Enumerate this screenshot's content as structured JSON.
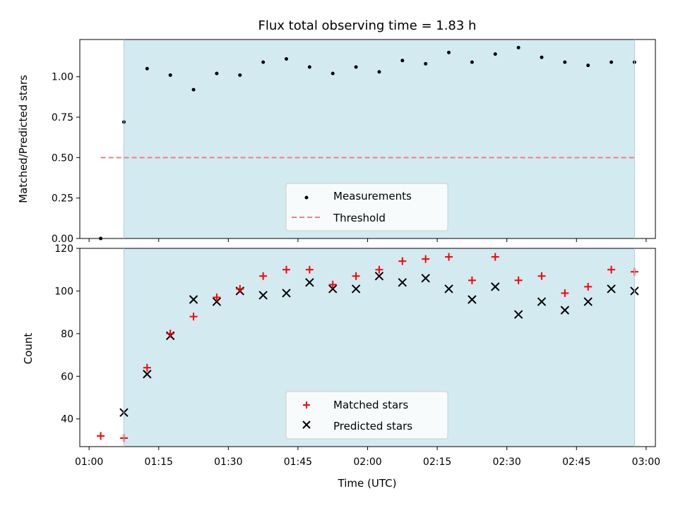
{
  "chart_data": [
    {
      "type": "scatter",
      "title": "Flux total observing time = 1.83 h",
      "xlabel": "",
      "ylabel": "Matched/Predicted stars",
      "ylim": [
        0,
        1.23
      ],
      "yticks": [
        "0.00",
        "0.25",
        "0.50",
        "0.75",
        "1.00"
      ],
      "shaded_interval": {
        "start": "01:07:30",
        "end": "02:57:30",
        "color": "#d4eaf1"
      },
      "series": [
        {
          "name": "Measurements",
          "marker": "dot",
          "color": "#000000",
          "points": [
            {
              "x": "01:02:30",
              "y": 0.0
            },
            {
              "x": "01:07:30",
              "y": 0.72
            },
            {
              "x": "01:12:30",
              "y": 1.05
            },
            {
              "x": "01:17:30",
              "y": 1.01
            },
            {
              "x": "01:22:30",
              "y": 0.92
            },
            {
              "x": "01:27:30",
              "y": 1.02
            },
            {
              "x": "01:32:30",
              "y": 1.01
            },
            {
              "x": "01:37:30",
              "y": 1.09
            },
            {
              "x": "01:42:30",
              "y": 1.11
            },
            {
              "x": "01:47:30",
              "y": 1.06
            },
            {
              "x": "01:52:30",
              "y": 1.02
            },
            {
              "x": "01:57:30",
              "y": 1.06
            },
            {
              "x": "02:02:30",
              "y": 1.03
            },
            {
              "x": "02:07:30",
              "y": 1.1
            },
            {
              "x": "02:12:30",
              "y": 1.08
            },
            {
              "x": "02:17:30",
              "y": 1.15
            },
            {
              "x": "02:22:30",
              "y": 1.09
            },
            {
              "x": "02:27:30",
              "y": 1.14
            },
            {
              "x": "02:32:30",
              "y": 1.18
            },
            {
              "x": "02:37:30",
              "y": 1.12
            },
            {
              "x": "02:42:30",
              "y": 1.09
            },
            {
              "x": "02:47:30",
              "y": 1.07
            },
            {
              "x": "02:52:30",
              "y": 1.09
            },
            {
              "x": "02:57:30",
              "y": 1.09
            }
          ]
        },
        {
          "name": "Threshold",
          "type": "line",
          "style": "dashed",
          "color": "#f08080",
          "points": [
            {
              "x": "01:02:30",
              "y": 0.5
            },
            {
              "x": "02:57:30",
              "y": 0.5
            }
          ]
        }
      ],
      "legend_position": "bottom-center",
      "grid": false
    },
    {
      "type": "scatter",
      "title": "",
      "xlabel": "Time (UTC)",
      "ylabel": "Count",
      "ylim": [
        27,
        120
      ],
      "yticks": [
        "40",
        "60",
        "80",
        "100",
        "120"
      ],
      "xticks": [
        "01:00",
        "01:15",
        "01:30",
        "01:45",
        "02:00",
        "02:15",
        "02:30",
        "02:45",
        "03:00"
      ],
      "shaded_interval": {
        "start": "01:07:30",
        "end": "02:57:30",
        "color": "#d4eaf1"
      },
      "series": [
        {
          "name": "Matched stars",
          "marker": "plus",
          "color": "#ff0000",
          "points": [
            {
              "x": "01:02:30",
              "y": 32
            },
            {
              "x": "01:07:30",
              "y": 31
            },
            {
              "x": "01:12:30",
              "y": 64
            },
            {
              "x": "01:17:30",
              "y": 80
            },
            {
              "x": "01:22:30",
              "y": 88
            },
            {
              "x": "01:27:30",
              "y": 97
            },
            {
              "x": "01:32:30",
              "y": 101
            },
            {
              "x": "01:37:30",
              "y": 107
            },
            {
              "x": "01:42:30",
              "y": 110
            },
            {
              "x": "01:47:30",
              "y": 110
            },
            {
              "x": "01:52:30",
              "y": 103
            },
            {
              "x": "01:57:30",
              "y": 107
            },
            {
              "x": "02:02:30",
              "y": 110
            },
            {
              "x": "02:07:30",
              "y": 114
            },
            {
              "x": "02:12:30",
              "y": 115
            },
            {
              "x": "02:17:30",
              "y": 116
            },
            {
              "x": "02:22:30",
              "y": 105
            },
            {
              "x": "02:27:30",
              "y": 116
            },
            {
              "x": "02:32:30",
              "y": 105
            },
            {
              "x": "02:37:30",
              "y": 107
            },
            {
              "x": "02:42:30",
              "y": 99
            },
            {
              "x": "02:47:30",
              "y": 102
            },
            {
              "x": "02:52:30",
              "y": 110
            },
            {
              "x": "02:57:30",
              "y": 109
            }
          ]
        },
        {
          "name": "Predicted stars",
          "marker": "x",
          "color": "#000000",
          "points": [
            {
              "x": "01:07:30",
              "y": 43
            },
            {
              "x": "01:12:30",
              "y": 61
            },
            {
              "x": "01:17:30",
              "y": 79
            },
            {
              "x": "01:22:30",
              "y": 96
            },
            {
              "x": "01:27:30",
              "y": 95
            },
            {
              "x": "01:32:30",
              "y": 100
            },
            {
              "x": "01:37:30",
              "y": 98
            },
            {
              "x": "01:42:30",
              "y": 99
            },
            {
              "x": "01:47:30",
              "y": 104
            },
            {
              "x": "01:52:30",
              "y": 101
            },
            {
              "x": "01:57:30",
              "y": 101
            },
            {
              "x": "02:02:30",
              "y": 107
            },
            {
              "x": "02:07:30",
              "y": 104
            },
            {
              "x": "02:12:30",
              "y": 106
            },
            {
              "x": "02:17:30",
              "y": 101
            },
            {
              "x": "02:22:30",
              "y": 96
            },
            {
              "x": "02:27:30",
              "y": 102
            },
            {
              "x": "02:32:30",
              "y": 89
            },
            {
              "x": "02:37:30",
              "y": 95
            },
            {
              "x": "02:42:30",
              "y": 91
            },
            {
              "x": "02:47:30",
              "y": 95
            },
            {
              "x": "02:52:30",
              "y": 101
            },
            {
              "x": "02:57:30",
              "y": 100
            }
          ]
        }
      ],
      "legend_position": "bottom-center",
      "grid": false
    }
  ],
  "x_axis": {
    "min": "00:58:00",
    "max": "03:02:00"
  }
}
